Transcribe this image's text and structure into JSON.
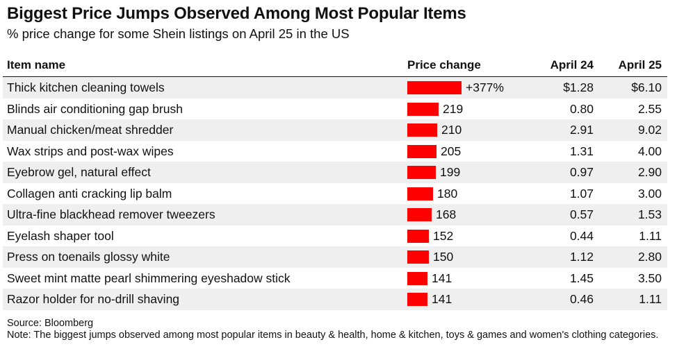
{
  "title": "Biggest Price Jumps Observed Among Most Popular Items",
  "subtitle": "% price change for some Shein listings on April 25 in the US",
  "headers": {
    "item": "Item name",
    "change": "Price change",
    "april24": "April 24",
    "april25": "April 25"
  },
  "chart_data": {
    "type": "bar",
    "title": "Biggest Price Jumps Observed Among Most Popular Items",
    "subtitle": "% price change for some Shein listings on April 25 in the US",
    "bar_color": "#ff0000",
    "max_value": 377,
    "rows": [
      {
        "name": "Thick kitchen cleaning towels",
        "change": 377,
        "change_label": "+377%",
        "april24": "$1.28",
        "april25": "$6.10"
      },
      {
        "name": "Blinds air conditioning gap brush",
        "change": 219,
        "change_label": "219",
        "april24": "0.80",
        "april25": "2.55"
      },
      {
        "name": "Manual chicken/meat shredder",
        "change": 210,
        "change_label": "210",
        "april24": "2.91",
        "april25": "9.02"
      },
      {
        "name": "Wax strips and post-wax wipes",
        "change": 205,
        "change_label": "205",
        "april24": "1.31",
        "april25": "4.00"
      },
      {
        "name": "Eyebrow gel, natural effect",
        "change": 199,
        "change_label": "199",
        "april24": "0.97",
        "april25": "2.90"
      },
      {
        "name": "Collagen anti cracking lip balm",
        "change": 180,
        "change_label": "180",
        "april24": "1.07",
        "april25": "3.00"
      },
      {
        "name": "Ultra-fine blackhead remover tweezers",
        "change": 168,
        "change_label": "168",
        "april24": "0.57",
        "april25": "1.53"
      },
      {
        "name": "Eyelash shaper tool",
        "change": 152,
        "change_label": "152",
        "april24": "0.44",
        "april25": "1.11"
      },
      {
        "name": "Press on toenails glossy white",
        "change": 150,
        "change_label": "150",
        "april24": "1.12",
        "april25": "2.80"
      },
      {
        "name": "Sweet mint matte pearl shimmering eyeshadow stick",
        "change": 141,
        "change_label": "141",
        "april24": "1.45",
        "april25": "3.50"
      },
      {
        "name": "Razor holder for no-drill shaving",
        "change": 141,
        "change_label": "141",
        "april24": "0.46",
        "april25": "1.11"
      }
    ]
  },
  "source": "Source: Bloomberg",
  "note": "Note: The biggest jumps observed among most popular items in beauty & health, home & kitchen, toys & games and women's clothing categories."
}
